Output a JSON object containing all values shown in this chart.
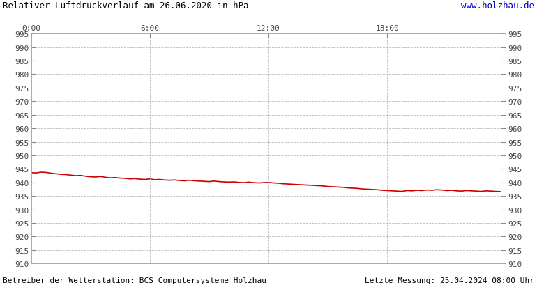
{
  "title": "Relativer Luftdruckverlauf am 26.06.2020 in hPa",
  "url_text": "www.holzhau.de",
  "footer_left": "Betreiber der Wetterstation: BCS Computersysteme Holzhau",
  "footer_right": "Letzte Messung: 25.04.2024 08:00 Uhr",
  "bg_color": "#ffffff",
  "plot_bg_color": "#ffffff",
  "grid_color": "#bbbbbb",
  "line_color": "#cc0000",
  "title_color": "#000000",
  "url_color": "#0000cc",
  "footer_color": "#000000",
  "ylim": [
    910,
    995
  ],
  "ytick_step": 5,
  "xlim_hours": [
    0,
    24
  ],
  "xtick_positions": [
    0,
    6,
    12,
    18,
    24
  ],
  "xtick_labels": [
    "0:00",
    "6:00",
    "12:00",
    "18:00",
    ""
  ],
  "pressure_hours": [
    0.0,
    0.25,
    0.5,
    0.75,
    1.0,
    1.25,
    1.5,
    1.75,
    2.0,
    2.25,
    2.5,
    2.75,
    3.0,
    3.25,
    3.5,
    3.75,
    4.0,
    4.25,
    4.5,
    4.75,
    5.0,
    5.25,
    5.5,
    5.75,
    6.0,
    6.25,
    6.5,
    6.75,
    7.0,
    7.25,
    7.5,
    7.75,
    8.0,
    8.25,
    8.5,
    8.75,
    9.0,
    9.25,
    9.5,
    9.75,
    10.0,
    10.25,
    10.5,
    10.75,
    11.0,
    11.25,
    11.5,
    11.75,
    12.0,
    12.25,
    12.5,
    12.75,
    13.0,
    13.25,
    13.5,
    13.75,
    14.0,
    14.25,
    14.5,
    14.75,
    15.0,
    15.25,
    15.5,
    15.75,
    16.0,
    16.25,
    16.5,
    16.75,
    17.0,
    17.25,
    17.5,
    17.75,
    18.0,
    18.25,
    18.5,
    18.75,
    19.0,
    19.25,
    19.5,
    19.75,
    20.0,
    20.25,
    20.5,
    20.75,
    21.0,
    21.25,
    21.5,
    21.75,
    22.0,
    22.25,
    22.5,
    22.75,
    23.0,
    23.25,
    23.5,
    23.75
  ],
  "pressure_values": [
    943.6,
    943.5,
    943.8,
    943.7,
    943.4,
    943.2,
    943.0,
    942.9,
    942.7,
    942.5,
    942.6,
    942.3,
    942.1,
    942.0,
    942.2,
    941.9,
    941.7,
    941.8,
    941.6,
    941.5,
    941.3,
    941.4,
    941.2,
    941.1,
    941.3,
    941.0,
    941.1,
    940.9,
    940.8,
    940.9,
    940.7,
    940.6,
    940.8,
    940.6,
    940.5,
    940.4,
    940.3,
    940.5,
    940.3,
    940.2,
    940.1,
    940.2,
    940.0,
    939.9,
    940.1,
    939.9,
    939.8,
    939.9,
    940.0,
    939.8,
    939.7,
    939.5,
    939.4,
    939.3,
    939.2,
    939.1,
    939.0,
    938.9,
    938.8,
    938.7,
    938.5,
    938.4,
    938.3,
    938.2,
    938.0,
    937.9,
    937.8,
    937.6,
    937.5,
    937.4,
    937.3,
    937.1,
    937.0,
    936.9,
    936.8,
    936.7,
    937.0,
    936.9,
    937.1,
    937.0,
    937.2,
    937.1,
    937.3,
    937.2,
    937.0,
    937.1,
    936.9,
    936.8,
    937.0,
    936.9,
    936.8,
    936.7,
    936.9,
    936.8,
    936.7,
    936.6
  ]
}
